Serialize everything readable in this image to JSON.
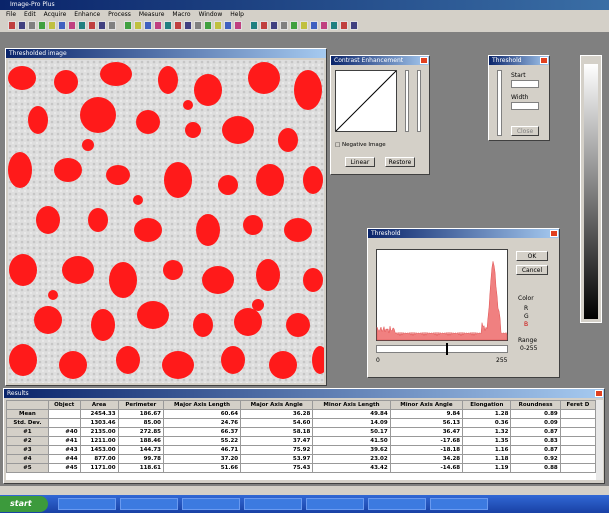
{
  "app": {
    "title": "Image-Pro Plus",
    "menu": [
      "File",
      "Edit",
      "Acquire",
      "Enhance",
      "Process",
      "Measure",
      "Macro",
      "Window",
      "Help"
    ]
  },
  "image_window": {
    "title": "Thresholded image"
  },
  "contrast": {
    "title": "Contrast Enhancement",
    "checkbox": "Negative Image",
    "buttons": [
      "Linear",
      "Restore"
    ]
  },
  "small_dialog": {
    "title": "Threshold",
    "labels": [
      "Start",
      "Width"
    ],
    "button": "Close"
  },
  "threshold": {
    "title": "Threshold",
    "buttons": [
      "OK",
      "Cancel"
    ],
    "color_label": "Color",
    "channels": [
      "R",
      "G",
      "B"
    ],
    "range_label": "Range",
    "range_value": "0-255",
    "axis_min": "0",
    "axis_max": "255"
  },
  "results": {
    "title": "Results",
    "headers": [
      "",
      "Object",
      "Area",
      "Perimeter",
      "Major Axis Length",
      "Major Axis Angle",
      "Minor Axis Length",
      "Minor Axis Angle",
      "Elongation",
      "Roundness",
      "Feret D"
    ],
    "rows": [
      [
        "Mean",
        "",
        "2454.33",
        "186.67",
        "60.64",
        "36.28",
        "49.84",
        "9.84",
        "1.28",
        "0.89",
        ""
      ],
      [
        "Std. Dev.",
        "",
        "1303.46",
        "85.00",
        "24.76",
        "54.60",
        "14.09",
        "56.13",
        "0.36",
        "0.09",
        ""
      ],
      [
        "#1",
        "#40",
        "2135.00",
        "272.85",
        "66.37",
        "58.18",
        "50.17",
        "36.47",
        "1.32",
        "0.87",
        ""
      ],
      [
        "#2",
        "#41",
        "1211.00",
        "188.46",
        "55.22",
        "37.47",
        "41.50",
        "-17.68",
        "1.35",
        "0.83",
        ""
      ],
      [
        "#3",
        "#43",
        "1453.00",
        "144.73",
        "46.71",
        "75.92",
        "39.62",
        "-18.18",
        "1.16",
        "0.87",
        ""
      ],
      [
        "#4",
        "#44",
        "877.00",
        "99.78",
        "37.20",
        "53.97",
        "23.02",
        "34.28",
        "1.18",
        "0.92",
        ""
      ],
      [
        "#5",
        "#45",
        "1171.00",
        "118.61",
        "51.66",
        "75.43",
        "43.42",
        "-14.68",
        "1.19",
        "0.88",
        ""
      ]
    ]
  },
  "taskbar": {
    "start": "start"
  }
}
